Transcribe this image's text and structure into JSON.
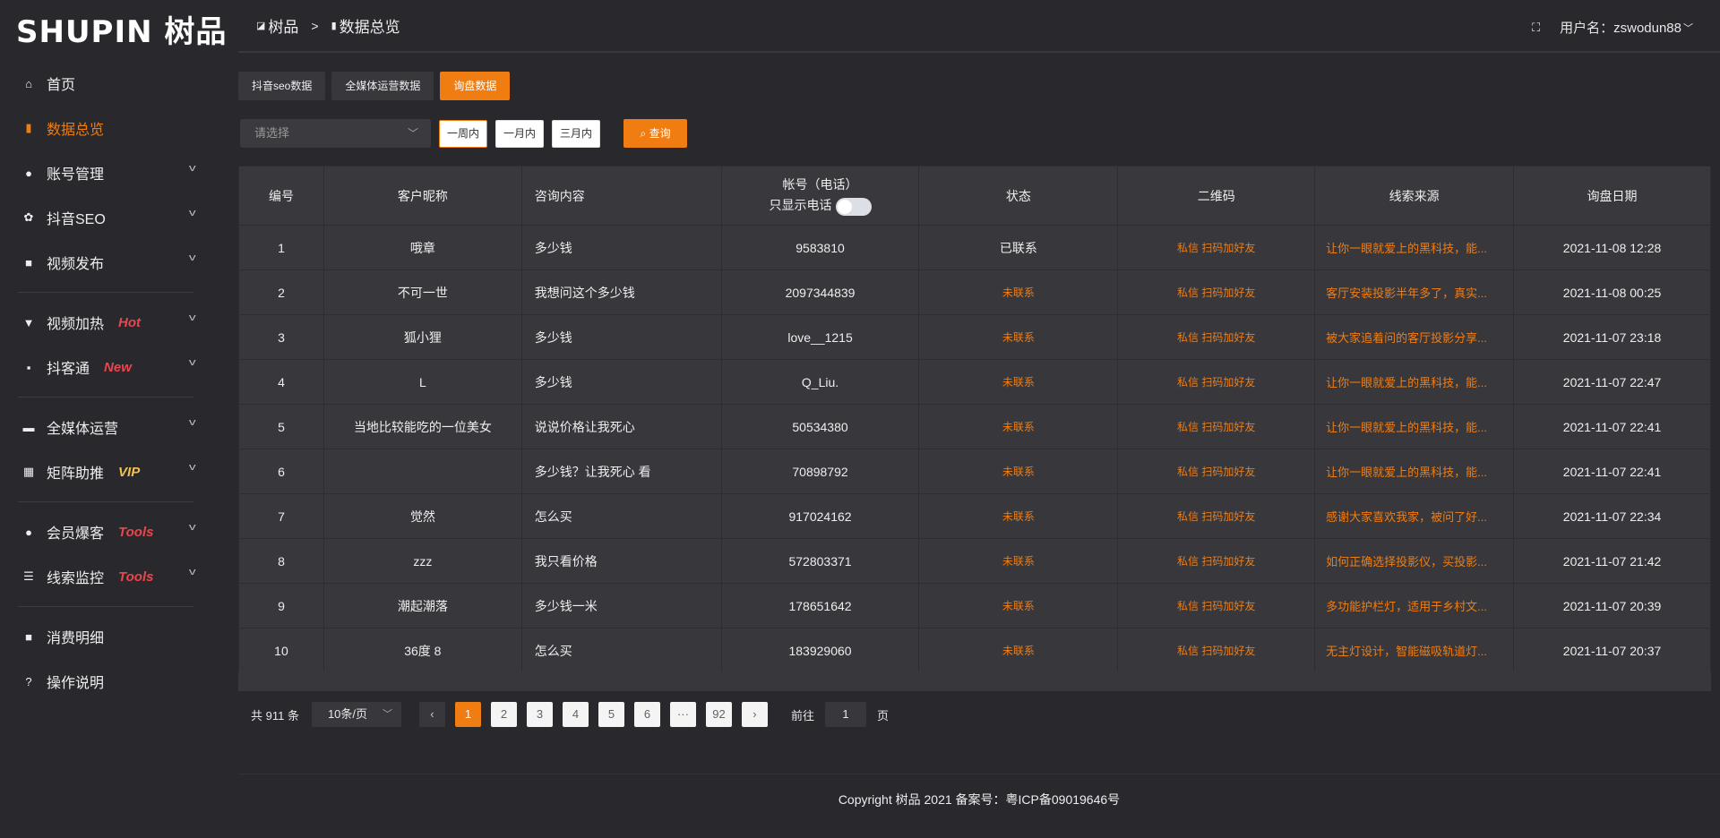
{
  "logo": "SHUPIN 树品",
  "sidebar": {
    "items": [
      {
        "label": "首页",
        "icon": "home-icon",
        "glyph": "⌂"
      },
      {
        "label": "数据总览",
        "icon": "bar-chart-icon",
        "glyph": "▮",
        "active": true
      },
      {
        "label": "账号管理",
        "icon": "user-icon",
        "glyph": "●",
        "chevron": true
      },
      {
        "label": "抖音SEO",
        "icon": "gear-icon",
        "glyph": "✿",
        "chevron": true
      },
      {
        "label": "视频发布",
        "icon": "video-camera-icon",
        "glyph": "■",
        "chevron": true
      },
      {
        "label": "视频加热",
        "icon": "flag-icon",
        "glyph": "▼",
        "chevron": true,
        "badge": "Hot"
      },
      {
        "label": "抖客通",
        "icon": "chat-icon",
        "glyph": "▪",
        "chevron": true,
        "badge": "New"
      },
      {
        "label": "全媒体运营",
        "icon": "monitor-icon",
        "glyph": "▬",
        "chevron": true
      },
      {
        "label": "矩阵助推",
        "icon": "grid-icon",
        "glyph": "▦",
        "chevron": true,
        "badge": "VIP"
      },
      {
        "label": "会员爆客",
        "icon": "member-icon",
        "glyph": "●",
        "chevron": true,
        "badge": "Tools"
      },
      {
        "label": "线索监控",
        "icon": "sliders-icon",
        "glyph": "☰",
        "chevron": true,
        "badge": "Tools"
      },
      {
        "label": "消费明细",
        "icon": "wallet-icon",
        "glyph": "■"
      },
      {
        "label": "操作说明",
        "icon": "help-icon",
        "glyph": "?"
      }
    ]
  },
  "header": {
    "breadcrumb": [
      "树品",
      "数据总览"
    ],
    "separator": ">",
    "username": "用户名：zswodun88"
  },
  "tabs": [
    {
      "label": "抖音seo数据"
    },
    {
      "label": "全媒体运营数据"
    },
    {
      "label": "询盘数据",
      "active": true
    }
  ],
  "filters": {
    "select_placeholder": "请选择",
    "ranges": [
      "一周内",
      "一月内",
      "三月内"
    ],
    "query": "查询"
  },
  "table": {
    "headers": [
      "编号",
      "客户昵称",
      "咨询内容",
      "帐号（电话）",
      "状态",
      "二维码",
      "线索来源",
      "询盘日期"
    ],
    "phone_toggle_label": "只显示电话",
    "rows": [
      [
        "1",
        "哦章",
        "多少钱",
        "9583810",
        "已联系",
        "私信 扫码加好友",
        "让你一眼就爱上的黑科技，能...",
        "2021-11-08 12:28"
      ],
      [
        "2",
        "不可一世",
        "我想问这个多少钱",
        "2097344839",
        "未联系",
        "私信 扫码加好友",
        "客厅安装投影半年多了，真实...",
        "2021-11-08 00:25"
      ],
      [
        "3",
        "狐小狸",
        "多少钱",
        "love__1215",
        "未联系",
        "私信 扫码加好友",
        "被大家追着问的客厅投影分享...",
        "2021-11-07 23:18"
      ],
      [
        "4",
        "L",
        "多少钱",
        "Q_Liu.",
        "未联系",
        "私信 扫码加好友",
        "让你一眼就爱上的黑科技，能...",
        "2021-11-07 22:47"
      ],
      [
        "5",
        "当地比较能吃的一位美女",
        "说说价格让我死心",
        "50534380",
        "未联系",
        "私信 扫码加好友",
        "让你一眼就爱上的黑科技，能...",
        "2021-11-07 22:41"
      ],
      [
        "6",
        "",
        "多少钱？让我死心 看",
        "70898792",
        "未联系",
        "私信 扫码加好友",
        "让你一眼就爱上的黑科技，能...",
        "2021-11-07 22:41"
      ],
      [
        "7",
        "觉然",
        "怎么买",
        "917024162",
        "未联系",
        "私信 扫码加好友",
        "感谢大家喜欢我家，被问了好...",
        "2021-11-07 22:34"
      ],
      [
        "8",
        "zzz",
        "我只看价格",
        "572803371",
        "未联系",
        "私信 扫码加好友",
        "如何正确选择投影仪，买投影...",
        "2021-11-07 21:42"
      ],
      [
        "9",
        "潮起潮落",
        "多少钱一米",
        "178651642",
        "未联系",
        "私信 扫码加好友",
        "多功能护栏灯，适用于乡村文...",
        "2021-11-07 20:39"
      ],
      [
        "10",
        "36度 8",
        "怎么买",
        "183929060",
        "未联系",
        "私信 扫码加好友",
        "无主灯设计，智能磁吸轨道灯...",
        "2021-11-07 20:37"
      ]
    ]
  },
  "pagination": {
    "total": "共 911 条",
    "page_size": "10条/页",
    "pages": [
      "1",
      "2",
      "3",
      "4",
      "5",
      "6",
      "···",
      "92"
    ],
    "current": "1",
    "goto_label": "前往",
    "goto_value": "1",
    "page_suffix": "页"
  },
  "footer": "Copyright 树品 2021 备案号：粤ICP备09019646号",
  "colors": {
    "accent": "#f07d12",
    "badge_red": "#e8474d",
    "badge_vip": "#f2c14e"
  }
}
